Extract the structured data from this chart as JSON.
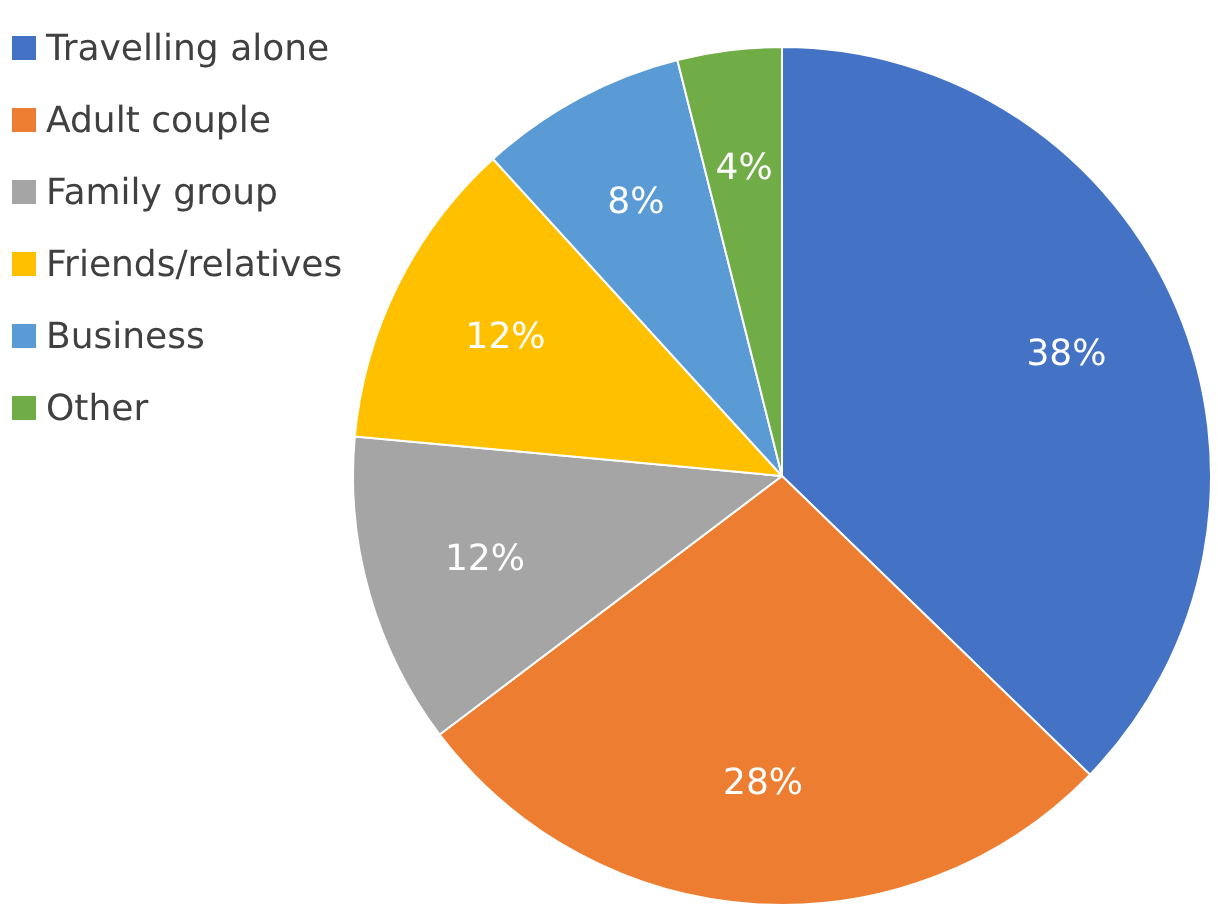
{
  "chart_data": {
    "type": "pie",
    "categories": [
      "Travelling alone",
      "Adult couple",
      "Family group",
      "Friends/relatives",
      "Business",
      "Other"
    ],
    "values": [
      38,
      28,
      12,
      12,
      8,
      4
    ],
    "colors": [
      "#4472c4",
      "#ed7d31",
      "#a5a5a5",
      "#ffc000",
      "#5b9bd5",
      "#70ad47"
    ],
    "value_labels": [
      "38%",
      "28%",
      "12%",
      "12%",
      "8%",
      "4%"
    ],
    "legend": "top left"
  }
}
